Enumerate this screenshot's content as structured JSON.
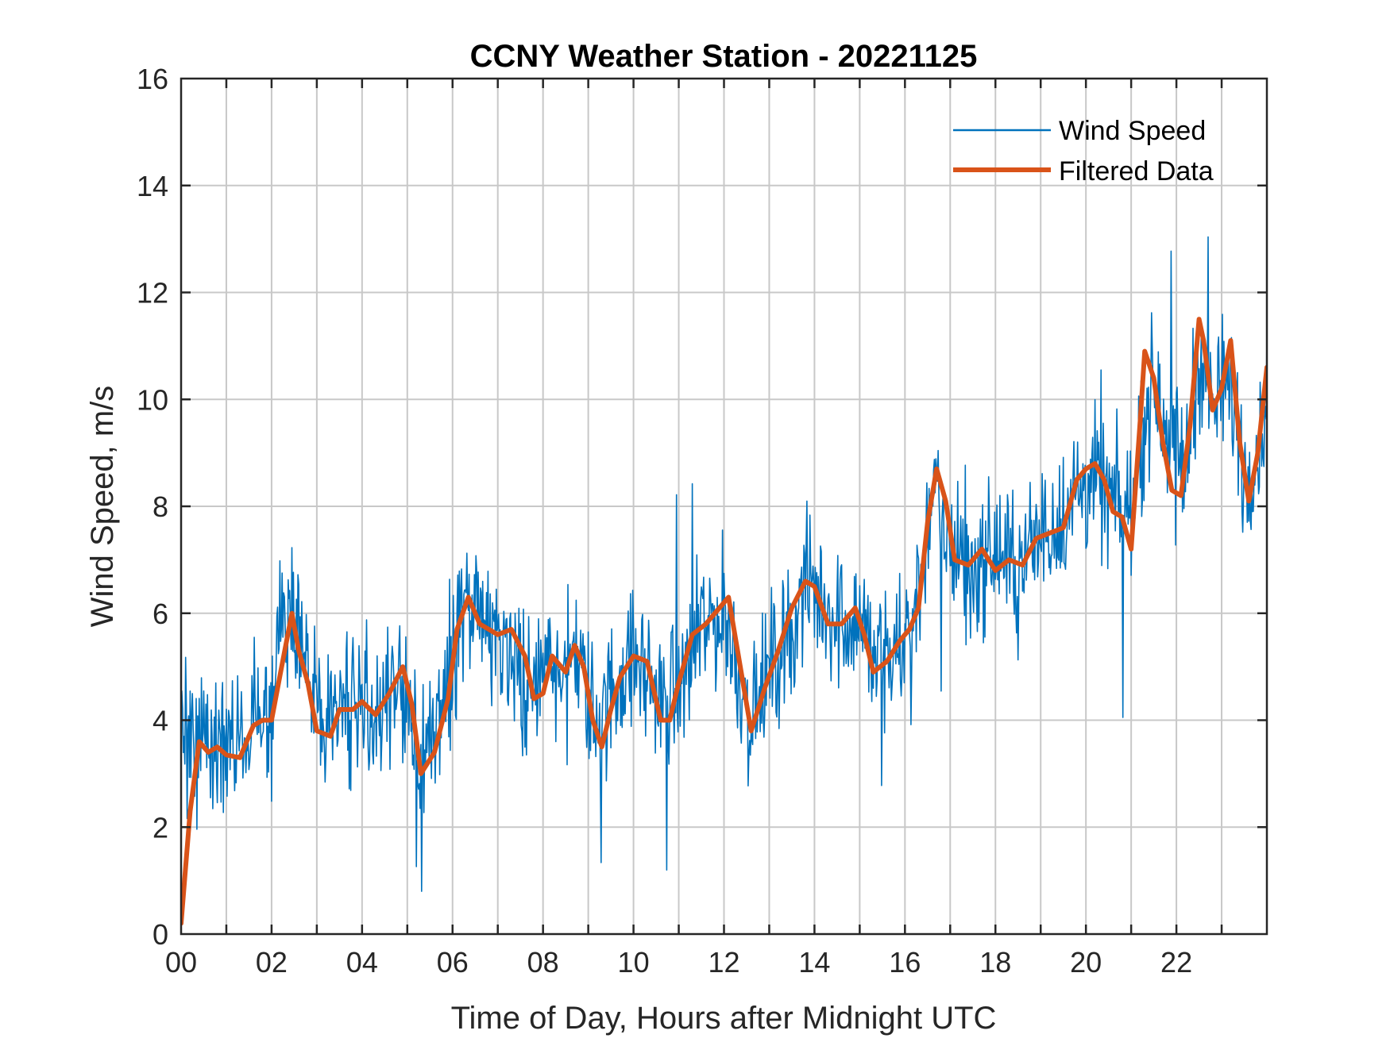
{
  "chart_data": {
    "type": "line",
    "title": "CCNY Weather Station - 20221125",
    "xlabel": "Time of Day, Hours after Midnight UTC",
    "ylabel": "Wind Speed, m/s",
    "xlim": [
      0,
      24
    ],
    "ylim": [
      0,
      16
    ],
    "grid": true,
    "legend_position": "top-right",
    "xticks": [
      0,
      2,
      4,
      6,
      8,
      10,
      12,
      14,
      16,
      18,
      20,
      22
    ],
    "xtick_labels": [
      "00",
      "02",
      "04",
      "06",
      "08",
      "10",
      "12",
      "14",
      "16",
      "18",
      "20",
      "22"
    ],
    "yticks": [
      0,
      2,
      4,
      6,
      8,
      10,
      12,
      14,
      16
    ],
    "ytick_labels": [
      "0",
      "2",
      "4",
      "6",
      "8",
      "10",
      "12",
      "14",
      "16"
    ],
    "series": [
      {
        "name": "Wind Speed",
        "color": "#0072BD",
        "kind": "raw",
        "noise_seed": 20221125,
        "noise_amplitude": 1.3,
        "x": [
          0.0,
          0.3,
          0.6,
          1.0,
          1.3,
          1.6,
          2.0,
          2.2,
          2.4,
          2.8,
          3.0,
          3.2,
          3.5,
          4.0,
          4.5,
          4.8,
          5.0,
          5.3,
          5.7,
          6.0,
          6.2,
          6.5,
          7.0,
          7.5,
          7.8,
          8.0,
          8.5,
          8.8,
          9.0,
          9.3,
          9.6,
          10.0,
          10.3,
          10.6,
          11.0,
          11.5,
          12.0,
          12.3,
          12.6,
          13.0,
          13.5,
          13.8,
          14.0,
          14.5,
          15.0,
          15.3,
          15.7,
          16.0,
          16.3,
          16.6,
          17.0,
          17.5,
          18.0,
          18.5,
          19.0,
          19.5,
          20.0,
          20.5,
          20.9,
          21.2,
          21.5,
          21.8,
          22.2,
          22.5,
          22.8,
          23.0,
          23.2,
          23.5,
          23.8,
          24.0
        ],
        "values": [
          3.8,
          3.5,
          3.6,
          3.4,
          3.5,
          3.9,
          4.2,
          5.5,
          5.9,
          5.0,
          4.4,
          3.9,
          4.2,
          4.2,
          4.4,
          4.8,
          4.1,
          3.2,
          4.0,
          5.2,
          6.1,
          5.7,
          5.6,
          5.1,
          4.5,
          4.9,
          5.2,
          5.1,
          4.4,
          3.8,
          4.8,
          5.1,
          4.9,
          4.2,
          4.6,
          5.7,
          6.0,
          5.0,
          4.0,
          4.9,
          5.8,
          6.5,
          6.4,
          5.9,
          5.9,
          5.2,
          5.1,
          5.6,
          6.4,
          8.3,
          7.2,
          6.8,
          7.1,
          6.9,
          7.4,
          7.8,
          8.5,
          8.3,
          7.7,
          9.2,
          10.3,
          9.6,
          8.7,
          10.9,
          9.8,
          10.1,
          10.3,
          8.6,
          9.0,
          10.0
        ]
      },
      {
        "name": "Filtered Data",
        "color": "#D95319",
        "kind": "filtered",
        "x": [
          0.0,
          0.2,
          0.4,
          0.6,
          0.8,
          1.0,
          1.3,
          1.6,
          1.8,
          2.0,
          2.2,
          2.45,
          2.6,
          2.8,
          3.0,
          3.3,
          3.5,
          3.8,
          4.0,
          4.3,
          4.6,
          4.9,
          5.1,
          5.3,
          5.6,
          5.9,
          6.1,
          6.35,
          6.6,
          7.0,
          7.3,
          7.6,
          7.8,
          8.0,
          8.2,
          8.5,
          8.7,
          8.9,
          9.1,
          9.3,
          9.5,
          9.7,
          10.0,
          10.3,
          10.6,
          10.8,
          11.0,
          11.3,
          11.6,
          11.9,
          12.1,
          12.3,
          12.6,
          12.9,
          13.2,
          13.5,
          13.8,
          14.0,
          14.3,
          14.6,
          14.9,
          15.1,
          15.3,
          15.6,
          15.9,
          16.1,
          16.3,
          16.5,
          16.7,
          16.9,
          17.1,
          17.4,
          17.7,
          18.0,
          18.3,
          18.6,
          18.9,
          19.2,
          19.5,
          19.8,
          20.0,
          20.2,
          20.4,
          20.6,
          20.8,
          21.0,
          21.2,
          21.3,
          21.5,
          21.7,
          21.9,
          22.1,
          22.3,
          22.5,
          22.6,
          22.8,
          23.0,
          23.2,
          23.4,
          23.6,
          23.8,
          24.0
        ],
        "values": [
          0.2,
          2.3,
          3.6,
          3.4,
          3.5,
          3.35,
          3.3,
          3.9,
          4.0,
          4.0,
          4.9,
          6.0,
          5.3,
          4.7,
          3.8,
          3.7,
          4.2,
          4.2,
          4.35,
          4.1,
          4.5,
          5.0,
          4.3,
          3.0,
          3.4,
          4.4,
          5.7,
          6.3,
          5.8,
          5.6,
          5.7,
          5.2,
          4.4,
          4.5,
          5.2,
          4.9,
          5.4,
          5.0,
          4.0,
          3.5,
          4.2,
          4.8,
          5.2,
          5.1,
          4.0,
          4.0,
          4.7,
          5.6,
          5.8,
          6.1,
          6.3,
          5.3,
          3.8,
          4.6,
          5.3,
          6.1,
          6.6,
          6.5,
          5.8,
          5.8,
          6.1,
          5.6,
          4.9,
          5.1,
          5.5,
          5.7,
          6.1,
          7.7,
          8.7,
          8.1,
          7.0,
          6.9,
          7.2,
          6.8,
          7.0,
          6.9,
          7.4,
          7.5,
          7.6,
          8.5,
          8.7,
          8.8,
          8.5,
          7.9,
          7.8,
          7.2,
          9.6,
          10.9,
          10.4,
          9.2,
          8.3,
          8.2,
          9.5,
          11.5,
          11.1,
          9.8,
          10.2,
          11.1,
          9.2,
          8.1,
          9.0,
          10.6
        ]
      }
    ]
  }
}
